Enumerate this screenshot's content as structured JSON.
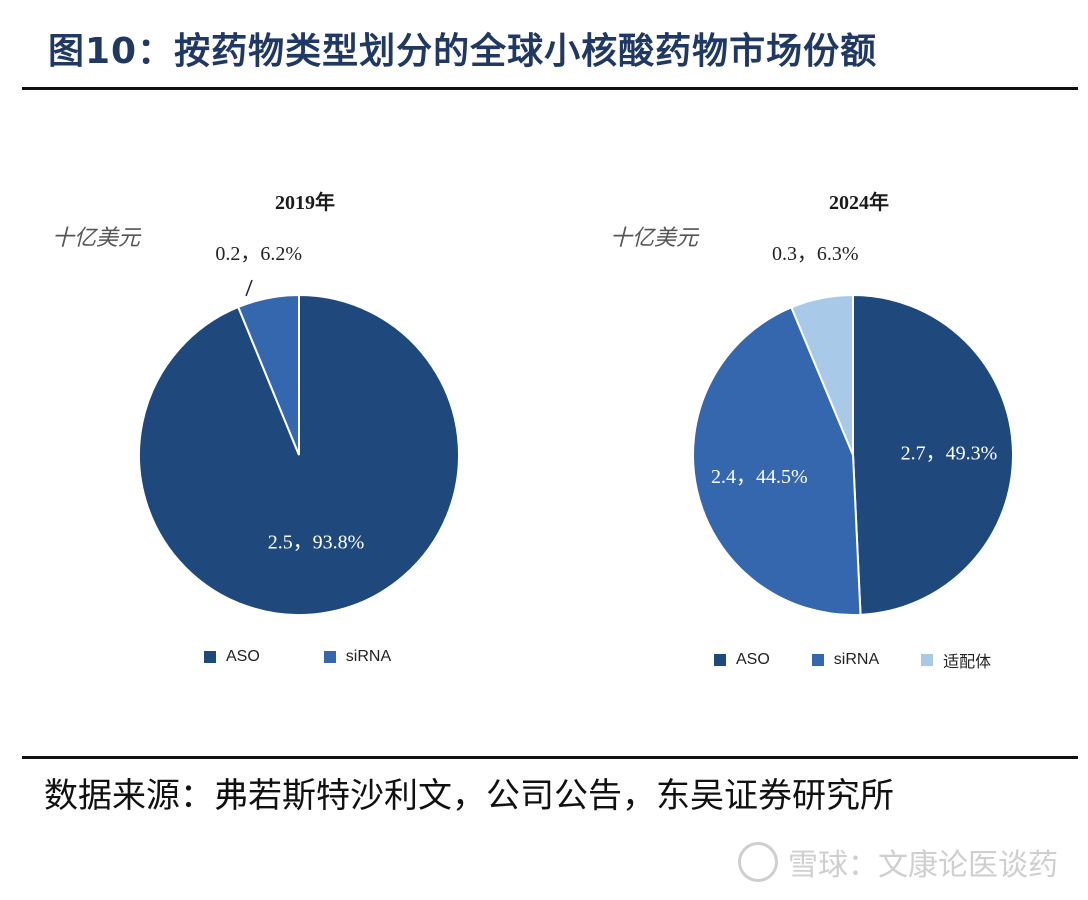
{
  "figure": {
    "title": "图10：按药物类型划分的全球小核酸药物市场份额",
    "source_text": "数据来源：弗若斯特沙利文，公司公告，东吴证券研究所",
    "watermark": "雪球：文康论医谈药"
  },
  "chart_data": [
    {
      "type": "pie",
      "title": "2019年",
      "unit_label": "十亿美元",
      "categories": [
        "ASO",
        "siRNA"
      ],
      "values": [
        2.5,
        0.2
      ],
      "percents": [
        93.8,
        6.2
      ],
      "data_labels": [
        "2.5，93.8%",
        "0.2，6.2%"
      ],
      "colors": [
        "#1f497d",
        "#3467ae"
      ],
      "legend": [
        "ASO",
        "siRNA"
      ],
      "legend_placement": "bottom"
    },
    {
      "type": "pie",
      "title": "2024年",
      "unit_label": "十亿美元",
      "categories": [
        "ASO",
        "siRNA",
        "适配体"
      ],
      "values": [
        2.7,
        2.4,
        0.3
      ],
      "percents": [
        49.3,
        44.5,
        6.3
      ],
      "data_labels": [
        "2.7，49.3%",
        "2.4，44.5%",
        "0.3，6.3%"
      ],
      "colors": [
        "#1f497d",
        "#3467ae",
        "#a9c9e9"
      ],
      "legend": [
        "ASO",
        "siRNA",
        "适配体"
      ],
      "legend_placement": "bottom"
    }
  ]
}
